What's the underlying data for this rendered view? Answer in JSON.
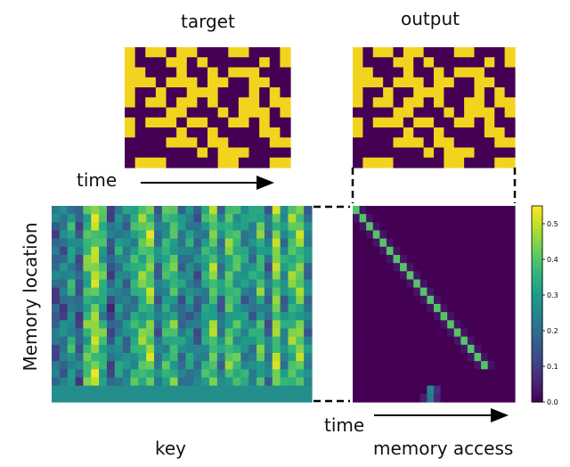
{
  "labels": {
    "target": "target",
    "output": "output",
    "time_left": "time",
    "time_right": "time",
    "key": "key",
    "memory_access": "memory access",
    "memory_location": "Memory location"
  },
  "colorbar": {
    "ticks": [
      "0.0",
      "0.1",
      "0.2",
      "0.3",
      "0.4",
      "0.5"
    ],
    "tick_values": [
      0.0,
      0.1,
      0.2,
      0.3,
      0.4,
      0.5
    ],
    "max": 0.55
  },
  "colors": {
    "viridis": [
      "#440154",
      "#482878",
      "#3e4989",
      "#31688e",
      "#26828e",
      "#1f9e89",
      "#35b779",
      "#6ece58",
      "#b5de2b",
      "#fde725"
    ],
    "binary_on": "#f2d41e",
    "binary_off": "#440154"
  },
  "target_pattern": [
    "1011011000110001",
    "1000110100000101",
    "1100010010111000",
    "1110111011001100",
    "1001001110001010",
    "1011011010011011",
    "0000110001011101",
    "1011101100110100",
    "1000010010000110",
    "0000111011000011",
    "0000000101110000",
    "0111000001100011"
  ],
  "output_pattern": [
    "1011011000110001",
    "1000110100000101",
    "1100010010111000",
    "1110111011001100",
    "1001001110001010",
    "1011011010011011",
    "0000110001011101",
    "1011101100110100",
    "1000010010000110",
    "0000111011000011",
    "0000000101110000",
    "0111000001100011"
  ],
  "key_column_levels": [
    0.25,
    0.3,
    0.45,
    0.22,
    0.6,
    0.75,
    0.55,
    0.2,
    0.4,
    0.35,
    0.5,
    0.62,
    0.7,
    0.3,
    0.52,
    0.58,
    0.33,
    0.4,
    0.28,
    0.48,
    0.66,
    0.35,
    0.62,
    0.55,
    0.42,
    0.38,
    0.58,
    0.3,
    0.72,
    0.4,
    0.62,
    0.68,
    0.35
  ],
  "key_last_row_value": 0.27,
  "memory_access": {
    "diagonal_value": 0.4,
    "background_value": 0.0,
    "bottom_spots": [
      {
        "row": 22,
        "col": 11,
        "value": 0.25
      },
      {
        "row": 22,
        "col": 12,
        "value": 0.08
      },
      {
        "row": 23,
        "col": 11,
        "value": 0.22
      },
      {
        "row": 23,
        "col": 12,
        "value": 0.06
      },
      {
        "row": 23,
        "col": 10,
        "value": 0.05
      }
    ]
  }
}
